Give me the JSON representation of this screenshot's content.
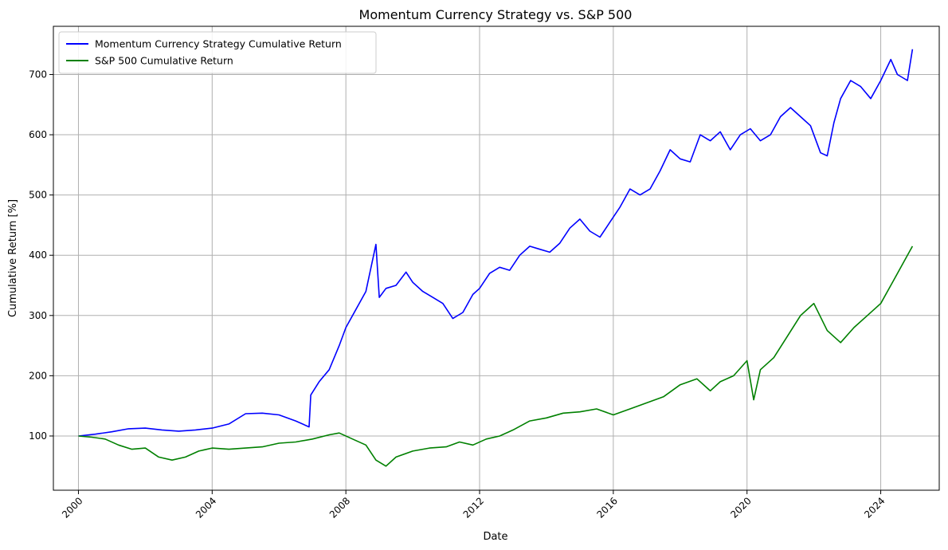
{
  "chart_data": {
    "type": "line",
    "title": "Momentum Currency Strategy vs. S&P 500",
    "xlabel": "Date",
    "ylabel": "Cumulative Return [%]",
    "xlim": [
      1999.25,
      2025.75
    ],
    "ylim": [
      10,
      780
    ],
    "x_ticks": [
      2000,
      2004,
      2008,
      2012,
      2016,
      2020,
      2024
    ],
    "x_tick_labels": [
      "2000",
      "2004",
      "2008",
      "2012",
      "2016",
      "2020",
      "2024"
    ],
    "y_ticks": [
      100,
      200,
      300,
      400,
      500,
      600,
      700
    ],
    "y_tick_labels": [
      "100",
      "200",
      "300",
      "400",
      "500",
      "600",
      "700"
    ],
    "grid": true,
    "legend_position": "top-left",
    "series": [
      {
        "name": "Momentum Currency Strategy Cumulative Return",
        "color": "#0000ff",
        "x": [
          2000.0,
          2000.5,
          2001.0,
          2001.5,
          2002.0,
          2002.5,
          2003.0,
          2003.5,
          2004.0,
          2004.5,
          2005.0,
          2005.5,
          2006.0,
          2006.5,
          2006.9,
          2006.95,
          2007.2,
          2007.5,
          2007.8,
          2008.0,
          2008.3,
          2008.6,
          2008.9,
          2009.0,
          2009.2,
          2009.5,
          2009.8,
          2010.0,
          2010.3,
          2010.6,
          2010.9,
          2011.2,
          2011.5,
          2011.8,
          2012.0,
          2012.3,
          2012.6,
          2012.9,
          2013.2,
          2013.5,
          2013.8,
          2014.1,
          2014.4,
          2014.7,
          2015.0,
          2015.3,
          2015.6,
          2015.9,
          2016.2,
          2016.5,
          2016.8,
          2017.1,
          2017.4,
          2017.7,
          2018.0,
          2018.3,
          2018.6,
          2018.9,
          2019.2,
          2019.5,
          2019.8,
          2020.1,
          2020.4,
          2020.7,
          2021.0,
          2021.3,
          2021.6,
          2021.9,
          2022.2,
          2022.4,
          2022.6,
          2022.8,
          2023.1,
          2023.4,
          2023.7,
          2024.0,
          2024.3,
          2024.5,
          2024.8,
          2024.95
        ],
        "values": [
          100,
          103,
          107,
          112,
          113,
          110,
          108,
          110,
          113,
          120,
          137,
          138,
          135,
          125,
          115,
          168,
          190,
          210,
          250,
          280,
          310,
          340,
          418,
          330,
          345,
          350,
          372,
          355,
          340,
          330,
          320,
          295,
          305,
          335,
          345,
          370,
          380,
          375,
          400,
          415,
          410,
          405,
          420,
          445,
          460,
          440,
          430,
          455,
          480,
          510,
          500,
          510,
          540,
          575,
          560,
          555,
          600,
          590,
          605,
          575,
          600,
          610,
          590,
          600,
          630,
          645,
          630,
          615,
          570,
          565,
          620,
          660,
          690,
          680,
          660,
          690,
          725,
          700,
          690,
          742
        ]
      },
      {
        "name": "S&P 500 Cumulative Return",
        "color": "#008000",
        "x": [
          2000.0,
          2000.4,
          2000.8,
          2001.2,
          2001.6,
          2002.0,
          2002.4,
          2002.8,
          2003.2,
          2003.6,
          2004.0,
          2004.5,
          2005.0,
          2005.5,
          2006.0,
          2006.5,
          2007.0,
          2007.5,
          2007.8,
          2008.2,
          2008.6,
          2008.9,
          2009.2,
          2009.5,
          2010.0,
          2010.5,
          2011.0,
          2011.4,
          2011.8,
          2012.2,
          2012.6,
          2013.0,
          2013.5,
          2014.0,
          2014.5,
          2015.0,
          2015.5,
          2016.0,
          2016.5,
          2017.0,
          2017.5,
          2018.0,
          2018.5,
          2018.9,
          2019.2,
          2019.6,
          2020.0,
          2020.2,
          2020.4,
          2020.8,
          2021.2,
          2021.6,
          2022.0,
          2022.4,
          2022.8,
          2023.2,
          2023.6,
          2024.0,
          2024.4,
          2024.8,
          2024.95
        ],
        "values": [
          100,
          98,
          95,
          85,
          78,
          80,
          65,
          60,
          65,
          75,
          80,
          78,
          80,
          82,
          88,
          90,
          95,
          102,
          105,
          95,
          85,
          60,
          50,
          65,
          75,
          80,
          82,
          90,
          85,
          95,
          100,
          110,
          125,
          130,
          138,
          140,
          145,
          135,
          145,
          155,
          165,
          185,
          195,
          175,
          190,
          200,
          225,
          160,
          210,
          230,
          265,
          300,
          320,
          275,
          255,
          280,
          300,
          320,
          360,
          400,
          415
        ]
      }
    ]
  }
}
